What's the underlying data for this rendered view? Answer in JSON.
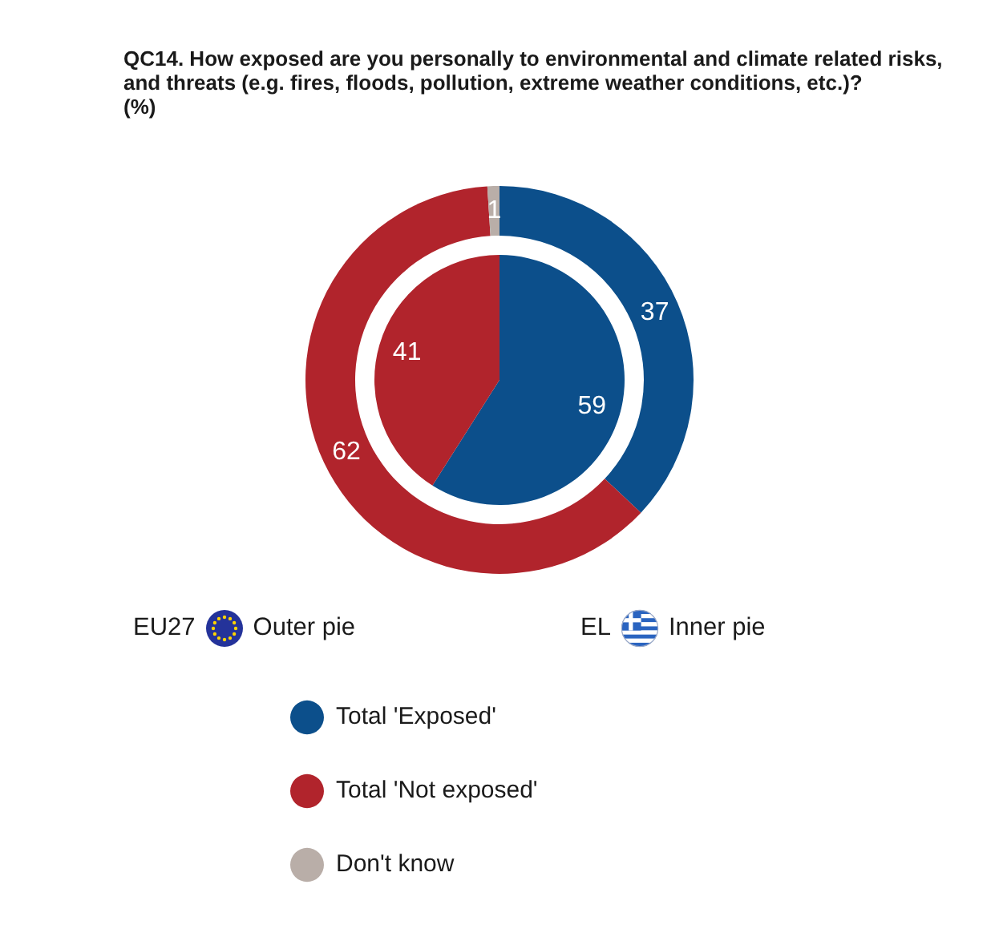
{
  "chart_data": {
    "type": "pie",
    "title": "QC14. How exposed are you personally to environmental and climate related risks, and threats (e.g. fires, floods, pollution, extreme weather conditions, etc.)?",
    "subtitle": "(%)",
    "categories": [
      "Total 'Exposed'",
      "Total 'Not exposed'",
      "Don't know"
    ],
    "colors": [
      "#0c4f8b",
      "#b1242c",
      "#b9aea8"
    ],
    "series": [
      {
        "values": [
          37,
          62,
          1
        ]
      },
      {
        "values": [
          59,
          41,
          0
        ]
      }
    ],
    "data_labels": true,
    "legend": "bottom left",
    "annotations": [
      "EU27",
      "Outer pie",
      "EL",
      "Inner pie"
    ]
  }
}
